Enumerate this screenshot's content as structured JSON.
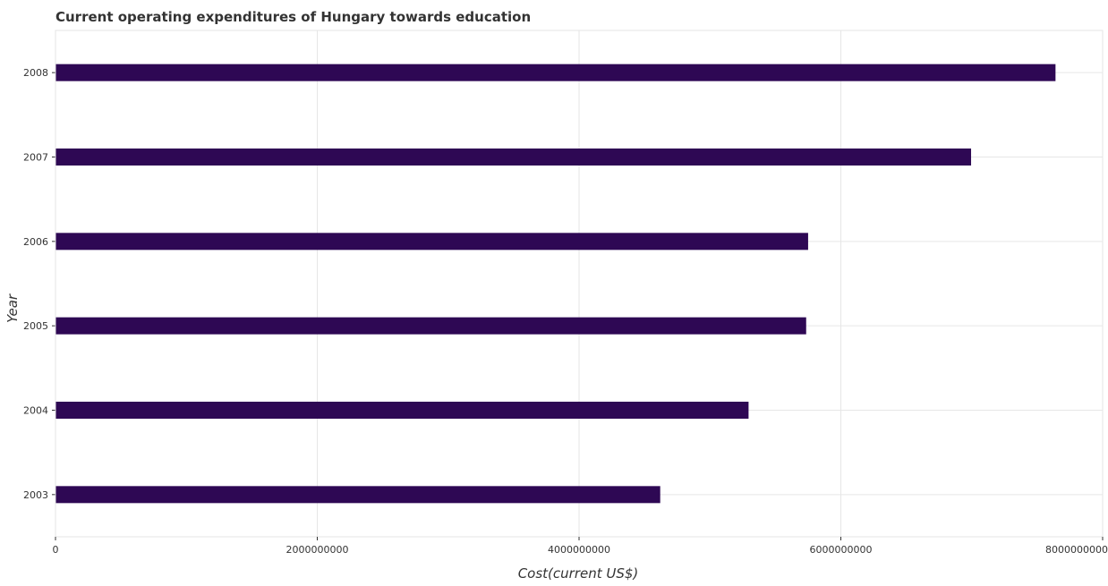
{
  "chart_data": {
    "type": "bar",
    "orientation": "horizontal",
    "title": "Current operating expenditures of Hungary towards education",
    "xlabel": "Cost(current US$)",
    "ylabel": "Year",
    "categories": [
      "2003",
      "2004",
      "2005",
      "2006",
      "2007",
      "2008"
    ],
    "values": [
      4620000000,
      5295000000,
      5735000000,
      5750000000,
      6995000000,
      7640000000
    ],
    "xlim": [
      0,
      8000000000
    ],
    "xticks": [
      0,
      2000000000,
      4000000000,
      6000000000,
      8000000000
    ],
    "xtick_labels": [
      "0",
      "2000000000",
      "4000000000",
      "6000000000",
      "8000000000"
    ],
    "bar_color": "#2e0854",
    "grid": true,
    "grid_color": "#e6e6e6"
  }
}
